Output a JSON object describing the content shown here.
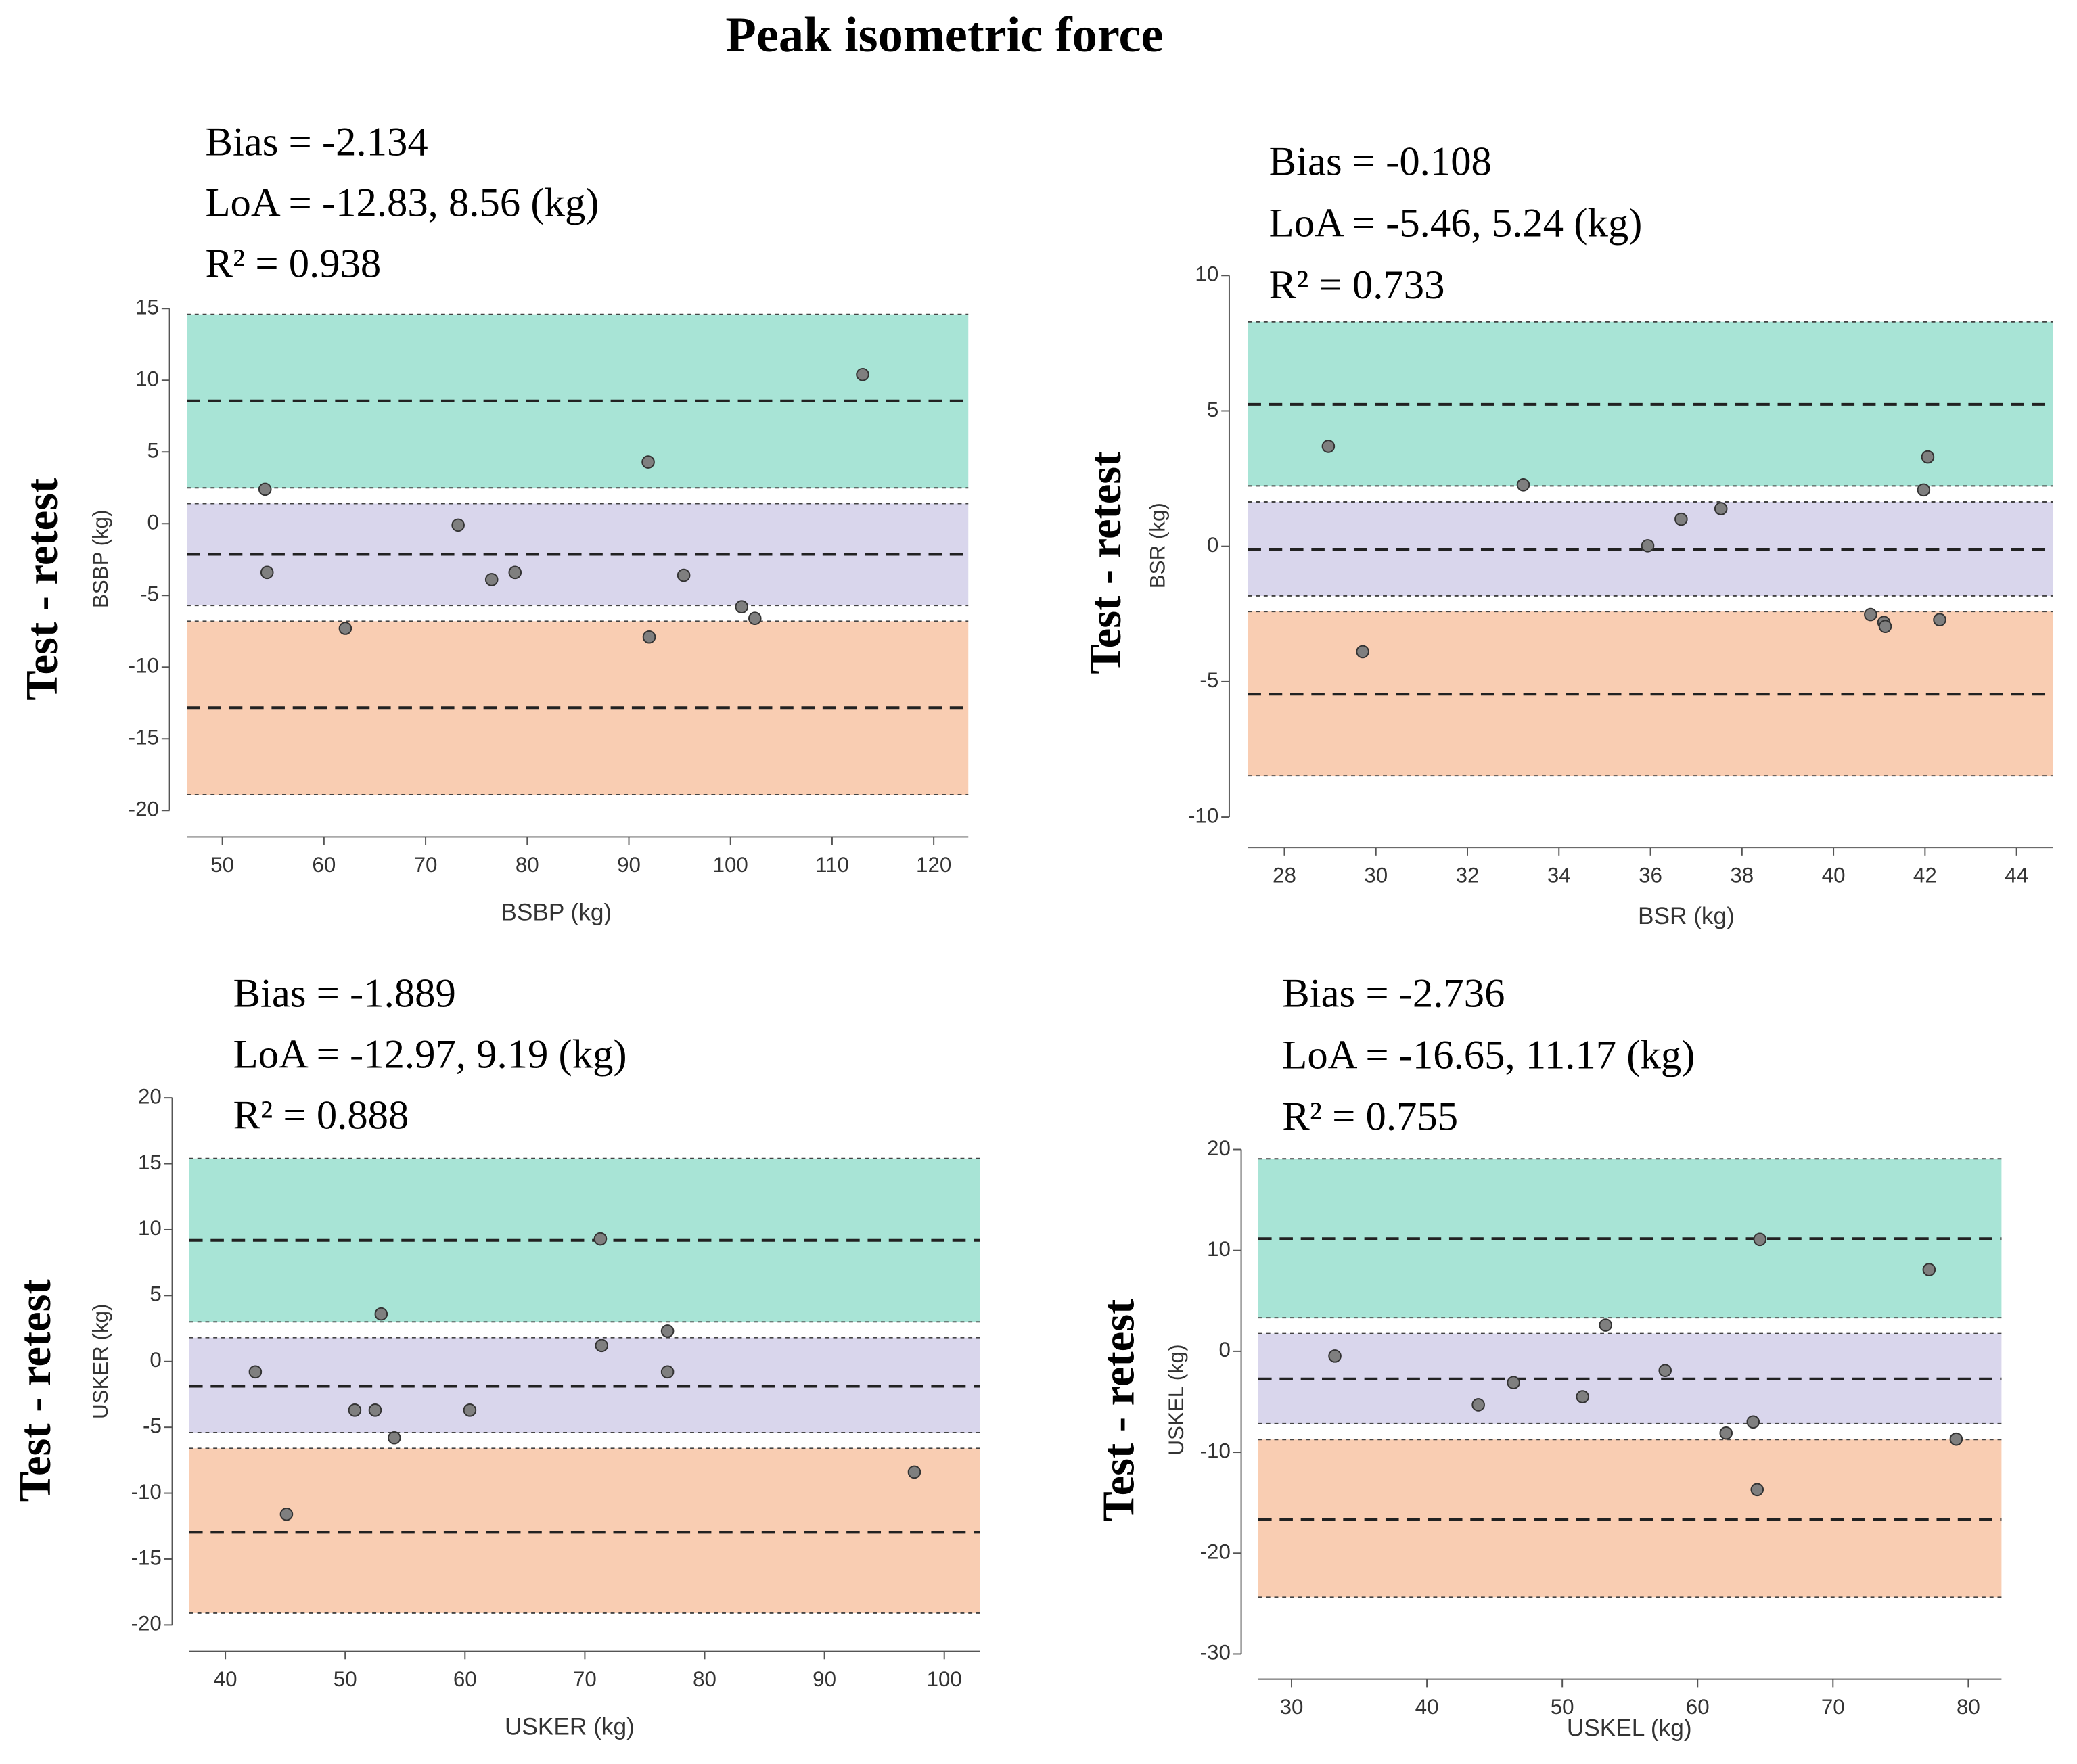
{
  "title": "Peak isometric force",
  "chart_data": [
    {
      "type": "scatter",
      "annotations": [
        "Bias = -2.134",
        "LoA = -12.83, 8.56 (kg)",
        "R² = 0.938"
      ],
      "ylabel_outer": "Test - retest",
      "ylabel": "BSBP (kg)",
      "xlabel": "BSBP (kg)",
      "xlim": [
        46.5,
        123.4
      ],
      "ylim": [
        -20,
        15
      ],
      "xticks": [
        50,
        60,
        70,
        80,
        90,
        100,
        110,
        120
      ],
      "yticks": [
        15,
        10,
        5,
        0,
        -5,
        -10,
        -15,
        -20
      ],
      "color": "#7f7f7f",
      "x": [
        113.0,
        54.2,
        54.4,
        62.1,
        73.2,
        76.5,
        78.8,
        91.9,
        92.0,
        95.4,
        101.1,
        102.4
      ],
      "y": [
        10.4,
        2.4,
        -3.4,
        -7.3,
        -0.1,
        -3.9,
        -3.4,
        4.3,
        -7.9,
        -3.6,
        -5.8,
        -6.6
      ],
      "reference_lines": [
        8.56,
        -2.134,
        -12.83
      ],
      "bands": [
        {
          "color": "#a8e4d6",
          "range": [
            2.5,
            14.6
          ]
        },
        {
          "color": "#d9d6ec",
          "range": [
            -5.7,
            1.4
          ]
        },
        {
          "color": "#f9cdb2",
          "range": [
            -18.9,
            -6.8
          ]
        }
      ]
    },
    {
      "type": "scatter",
      "annotations": [
        "Bias = -0.108",
        "LoA = -5.46, 5.24 (kg)",
        "R² = 0.733"
      ],
      "ylabel_outer": "Test - retest",
      "ylabel": "BSR (kg)",
      "xlabel": "BSR (kg)",
      "xlim": [
        27.2,
        44.8
      ],
      "ylim": [
        -10,
        10
      ],
      "xticks": [
        28,
        30,
        32,
        34,
        36,
        38,
        40,
        42,
        44
      ],
      "yticks": [
        10,
        5,
        0,
        -5,
        -10
      ],
      "color": "#7f7f7f",
      "x": [
        28.96,
        29.71,
        33.22,
        35.94,
        36.67,
        37.54,
        40.81,
        41.1,
        41.13,
        41.97,
        42.06,
        42.32
      ],
      "y": [
        3.69,
        -3.89,
        2.27,
        0.02,
        1.0,
        1.39,
        -2.52,
        -2.81,
        -2.96,
        2.08,
        3.3,
        -2.71
      ],
      "reference_lines": [
        5.24,
        -0.108,
        -5.46
      ],
      "bands": [
        {
          "color": "#a8e4d6",
          "range": [
            2.23,
            8.29
          ]
        },
        {
          "color": "#d9d6ec",
          "range": [
            -1.83,
            1.64
          ]
        },
        {
          "color": "#f9cdb2",
          "range": [
            -8.48,
            -2.41
          ]
        }
      ]
    },
    {
      "type": "scatter",
      "annotations": [
        "Bias = -1.889",
        "LoA = -12.97, 9.19 (kg)",
        "R² = 0.888"
      ],
      "ylabel_outer": "Test - retest",
      "ylabel": "USKER (kg)",
      "xlabel": "USKER (kg)",
      "xlim": [
        37.0,
        103.0
      ],
      "ylim": [
        -20,
        20
      ],
      "xticks": [
        40,
        50,
        60,
        70,
        80,
        90,
        100
      ],
      "yticks": [
        20,
        15,
        10,
        5,
        0,
        -5,
        -10,
        -15,
        -20
      ],
      "color": "#7f7f7f",
      "x": [
        42.5,
        45.1,
        50.8,
        52.5,
        53.0,
        54.1,
        60.4,
        71.3,
        71.4,
        76.9,
        76.9,
        97.5
      ],
      "y": [
        -0.8,
        -11.6,
        -3.7,
        -3.7,
        3.6,
        -5.8,
        -3.7,
        9.3,
        1.2,
        2.3,
        -0.8,
        -8.4
      ],
      "reference_lines": [
        9.19,
        -1.889,
        -12.97
      ],
      "bands": [
        {
          "color": "#a8e4d6",
          "range": [
            3.0,
            15.4
          ]
        },
        {
          "color": "#d9d6ec",
          "range": [
            -5.4,
            1.8
          ]
        },
        {
          "color": "#f9cdb2",
          "range": [
            -19.1,
            -6.6
          ]
        }
      ]
    },
    {
      "type": "scatter",
      "annotations": [
        "Bias = -2.736",
        "LoA = -16.65, 11.17 (kg)",
        "R² = 0.755"
      ],
      "ylabel_outer": "Test - retest",
      "ylabel": "USKEL (kg)",
      "xlabel": "USKEL (kg)",
      "xlim": [
        27.55,
        82.45
      ],
      "ylim": [
        -30,
        20
      ],
      "xticks": [
        30,
        40,
        50,
        60,
        70,
        80
      ],
      "yticks": [
        20,
        10,
        0,
        -10,
        -20,
        -30
      ],
      "color": "#7f7f7f",
      "x": [
        33.2,
        43.8,
        46.4,
        51.5,
        53.2,
        57.6,
        62.1,
        64.1,
        64.4,
        64.6,
        77.1,
        79.1
      ],
      "y": [
        -0.47,
        -5.3,
        -3.1,
        -4.5,
        2.6,
        -1.9,
        -8.1,
        -7.0,
        -13.7,
        11.1,
        8.1,
        -8.7
      ],
      "reference_lines": [
        11.17,
        -2.736,
        -16.65
      ],
      "bands": [
        {
          "color": "#a8e4d6",
          "range": [
            3.33,
            19.08
          ]
        },
        {
          "color": "#d9d6ec",
          "range": [
            -7.17,
            1.76
          ]
        },
        {
          "color": "#f9cdb2",
          "range": [
            -24.36,
            -8.74
          ]
        }
      ]
    }
  ]
}
